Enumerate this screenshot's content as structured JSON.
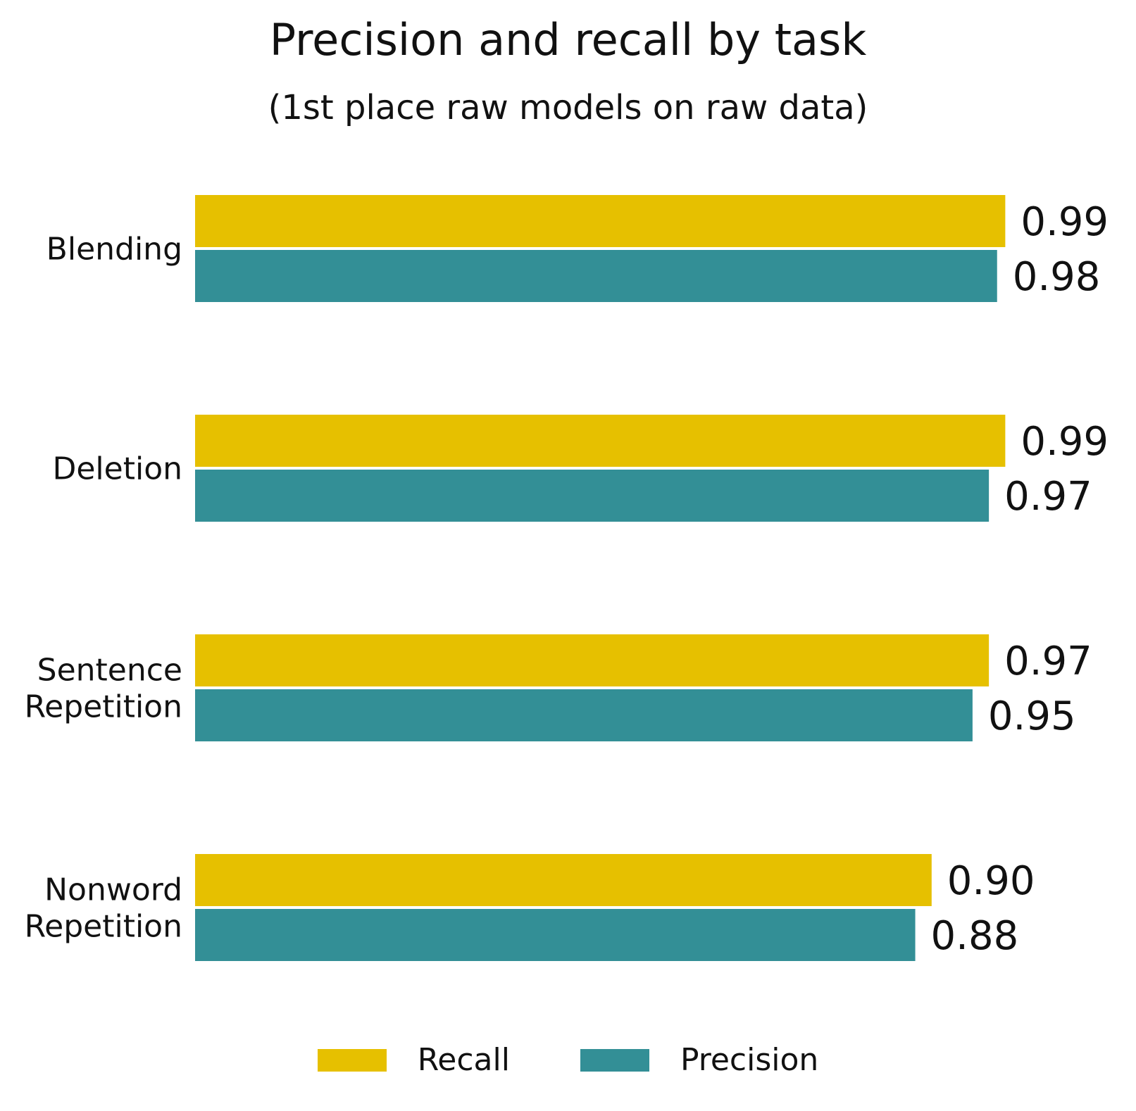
{
  "chart_data": {
    "type": "bar",
    "orientation": "horizontal",
    "title": "Precision and recall by task",
    "subtitle": "(1st place raw models on raw data)",
    "categories": [
      "Blending",
      "Deletion",
      "Sentence\nRepetition",
      "Nonword\nRepetition"
    ],
    "series": [
      {
        "name": "Recall",
        "color": "#e6c000",
        "values": [
          0.99,
          0.99,
          0.97,
          0.9
        ],
        "labels": [
          "0.99",
          "0.99",
          "0.97",
          "0.90"
        ]
      },
      {
        "name": "Precision",
        "color": "#338f96",
        "values": [
          0.98,
          0.97,
          0.95,
          0.88
        ],
        "labels": [
          "0.98",
          "0.97",
          "0.95",
          "0.88"
        ]
      }
    ],
    "xlim": [
      0,
      1.0
    ],
    "grid": false,
    "legend_position": "bottom-center"
  }
}
